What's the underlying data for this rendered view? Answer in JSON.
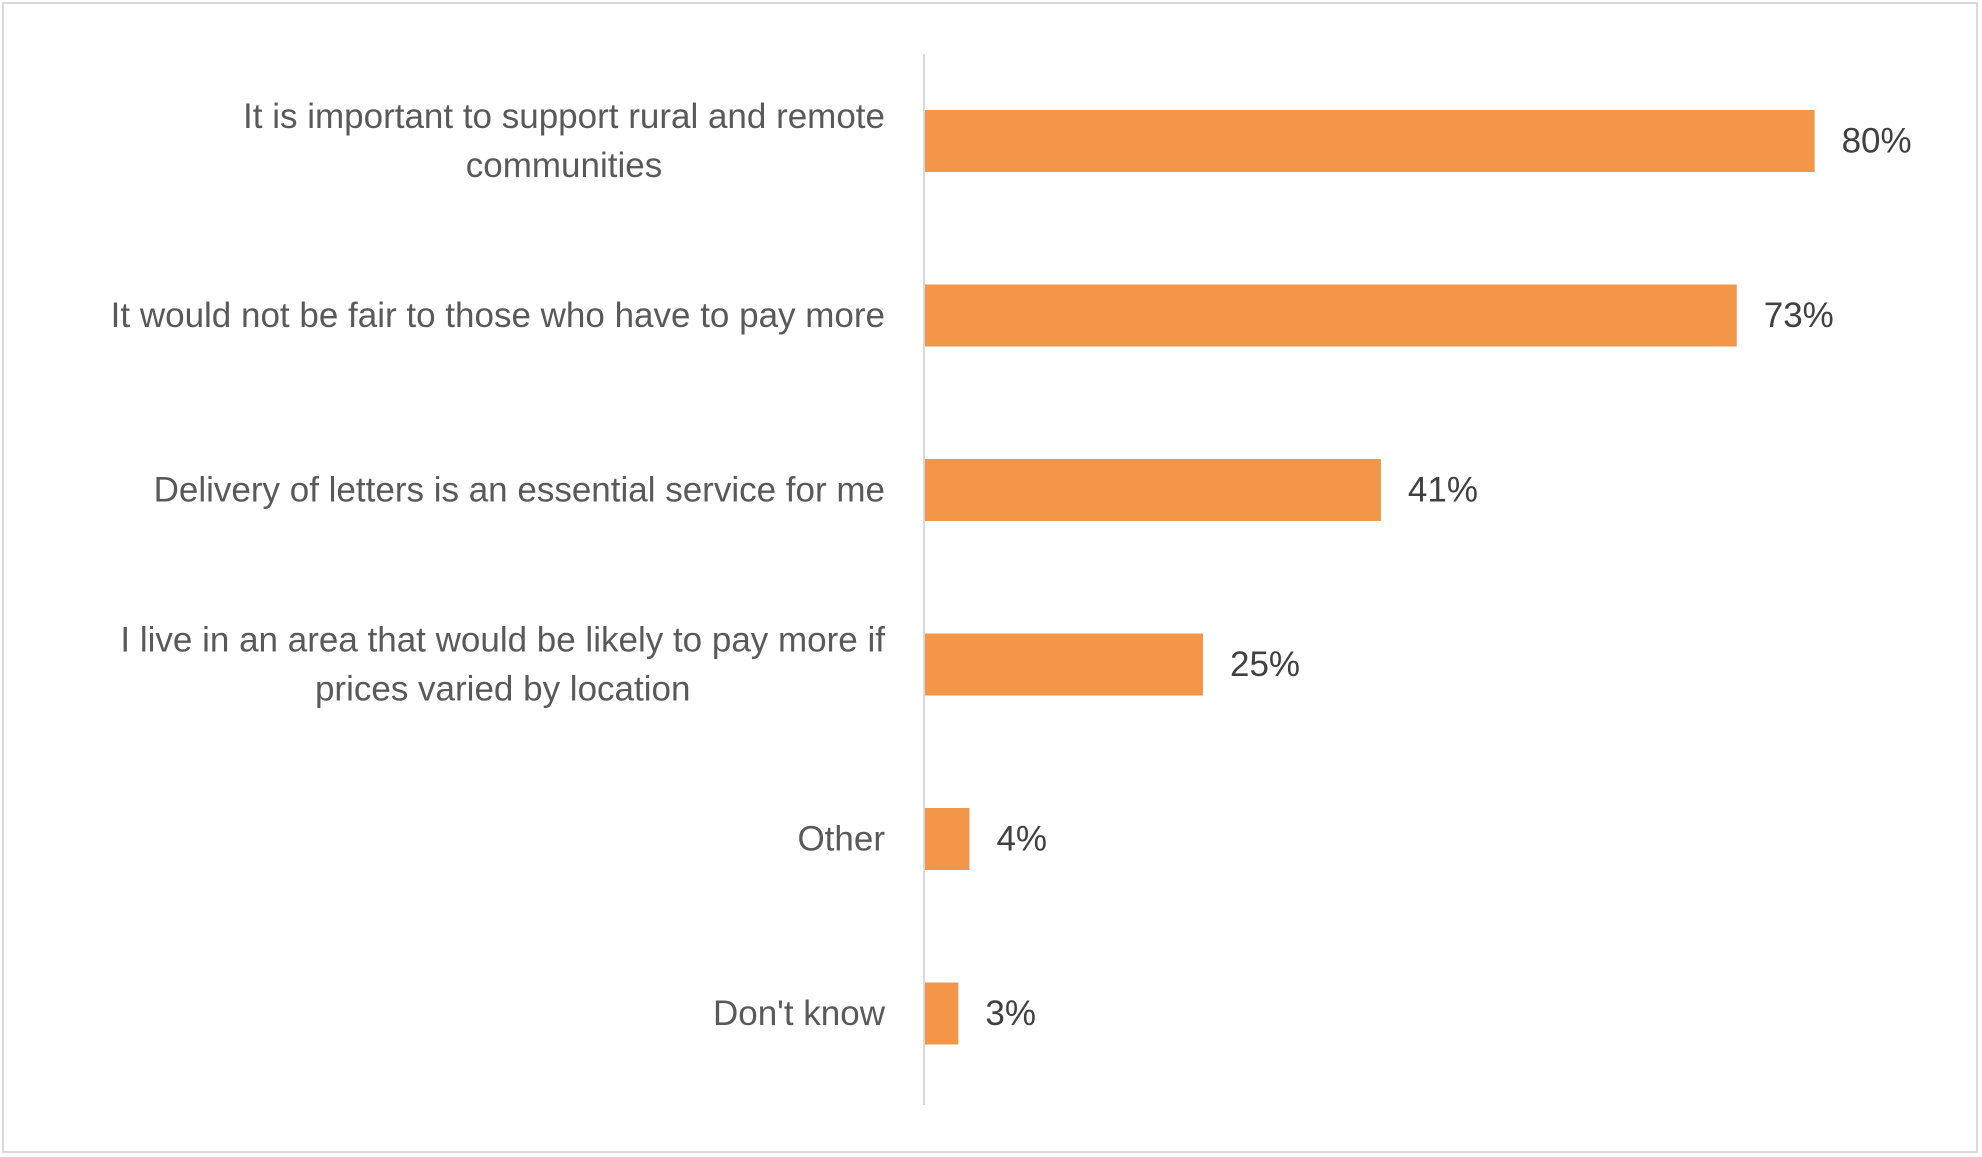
{
  "chart_data": {
    "type": "bar",
    "orientation": "horizontal",
    "categories": [
      [
        "It is important to support rural and remote",
        "communities"
      ],
      [
        "It would not be fair to those who have to pay more"
      ],
      [
        "Delivery of letters is an essential service for me"
      ],
      [
        "I live in an area that would be likely to pay more if",
        "prices varied by location"
      ],
      [
        "Other"
      ],
      [
        "Don't know"
      ]
    ],
    "values": [
      80,
      73,
      41,
      25,
      4,
      3
    ],
    "data_labels": [
      "80%",
      "73%",
      "41%",
      "25%",
      "4%",
      "3%"
    ],
    "title": "",
    "xlabel": "",
    "ylabel": "",
    "xlim": [
      0,
      100
    ],
    "grid": false,
    "legend": "none",
    "bar_color": "#f29649",
    "axis_color": "#d9d9d9"
  }
}
